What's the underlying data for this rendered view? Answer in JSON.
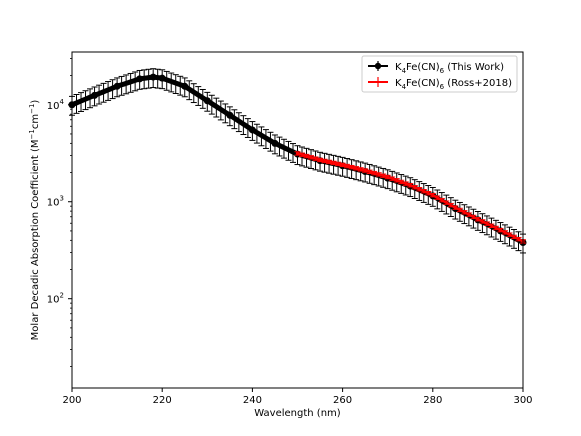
{
  "chart_data": {
    "type": "line",
    "xlabel": "Wavelength (nm)",
    "ylabel": {
      "text": "Molar Decadic Absorption Coefficient (M",
      "sup1": "−1",
      "mid": "cm",
      "sup2": "−1",
      "end": ")"
    },
    "xlim": [
      200,
      300
    ],
    "ylim": [
      12,
      35000
    ],
    "yscale": "log",
    "xticks": [
      200,
      220,
      240,
      260,
      280,
      300
    ],
    "yticks": [
      {
        "value": 100,
        "base": "10",
        "exp": "2"
      },
      {
        "value": 1000,
        "base": "10",
        "exp": "3"
      },
      {
        "value": 10000,
        "base": "10",
        "exp": "4"
      }
    ],
    "grid": false,
    "legend_position": "top-right",
    "series": [
      {
        "name": "K4Fe(CN)6 (This Work)",
        "legend": {
          "a": "K",
          "s1": "4",
          "b": "Fe(CN)",
          "s2": "6",
          "c": " (This Work)"
        },
        "color": "#000000",
        "marker": "circle",
        "error_fraction": 0.22,
        "x": [
          200,
          205,
          210,
          215,
          218,
          220,
          225,
          230,
          235,
          240,
          245,
          250,
          255,
          260,
          265,
          270,
          275,
          280,
          285,
          290,
          295,
          300
        ],
        "y": [
          10000,
          12500,
          15500,
          18500,
          19300,
          18800,
          15500,
          11000,
          7800,
          5500,
          4000,
          3100,
          2650,
          2350,
          2050,
          1750,
          1450,
          1150,
          850,
          650,
          500,
          380
        ]
      },
      {
        "name": "K4Fe(CN)6 (Ross+2018)",
        "legend": {
          "a": "K",
          "s1": "4",
          "b": "Fe(CN)",
          "s2": "6",
          "c": " (Ross+2018)"
        },
        "color": "#ff0000",
        "marker": "none",
        "error_fraction": 0.04,
        "x": [
          250,
          255,
          260,
          265,
          270,
          275,
          280,
          285,
          290,
          295,
          300
        ],
        "y": [
          3150,
          2700,
          2400,
          2100,
          1800,
          1480,
          1170,
          870,
          660,
          510,
          390
        ]
      }
    ]
  }
}
